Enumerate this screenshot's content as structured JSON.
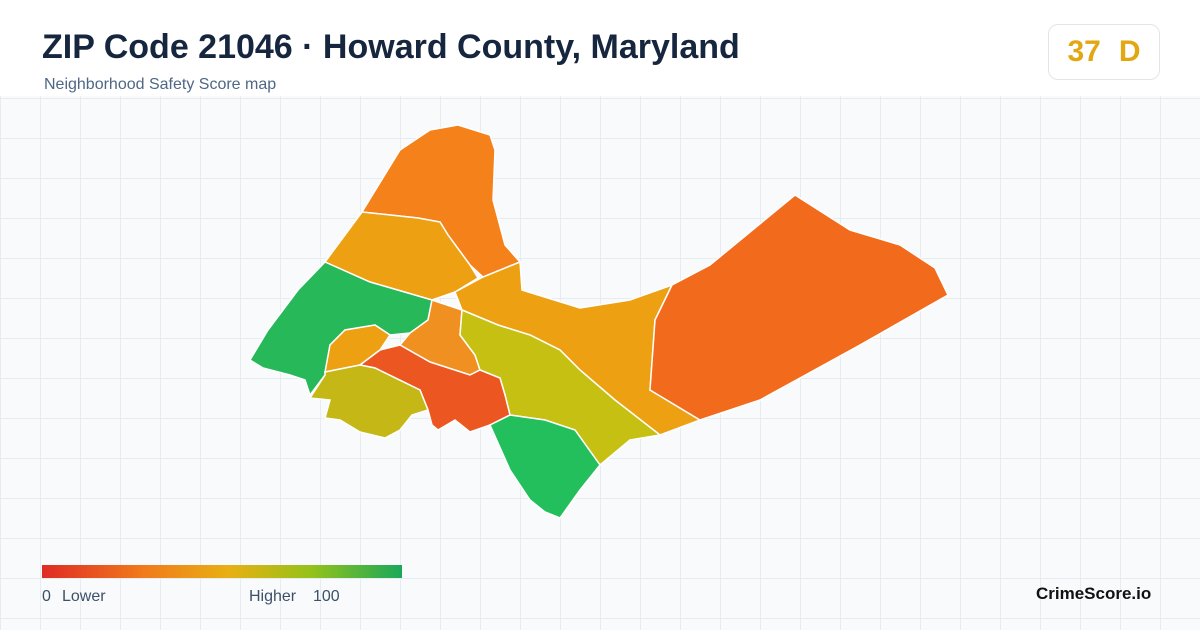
{
  "header": {
    "title": "ZIP Code 21046 · Howard County, Maryland",
    "subtitle": "Neighborhood Safety Score map"
  },
  "score": {
    "value": 37,
    "grade": "D"
  },
  "legend": {
    "min": 0,
    "min_label": "Lower",
    "max_label": "Higher",
    "max": 100
  },
  "brand": "CrimeScore.io"
}
